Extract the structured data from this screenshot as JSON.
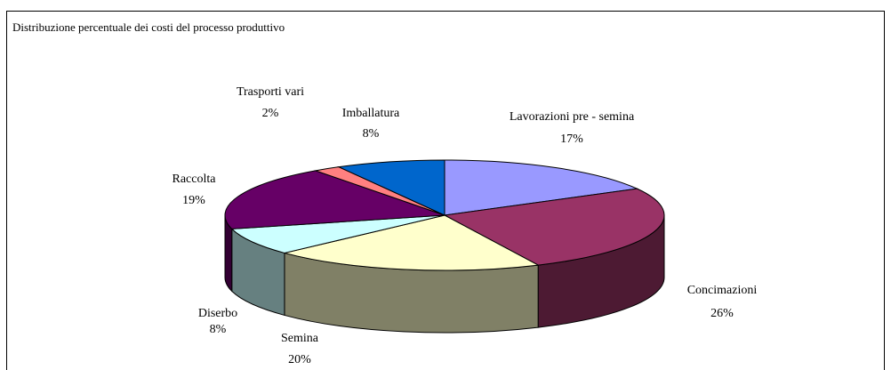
{
  "chart_data": {
    "type": "pie3d",
    "title": "Distribuzione percentuale dei costi  del processo produttivo",
    "categories": [
      "Lavorazioni pre - semina",
      "Concimazioni",
      "Semina",
      "Diserbo",
      "Raccolta",
      "Trasporti vari",
      "Imballatura"
    ],
    "values": [
      17,
      26,
      20,
      8,
      19,
      2,
      8
    ],
    "value_labels": [
      "17%",
      "26%",
      "20%",
      "8%",
      "19%",
      "2%",
      "8%"
    ],
    "colors": [
      "#9999ff",
      "#993366",
      "#ffffcc",
      "#ccffff",
      "#660066",
      "#ff8080",
      "#0066cc"
    ]
  }
}
